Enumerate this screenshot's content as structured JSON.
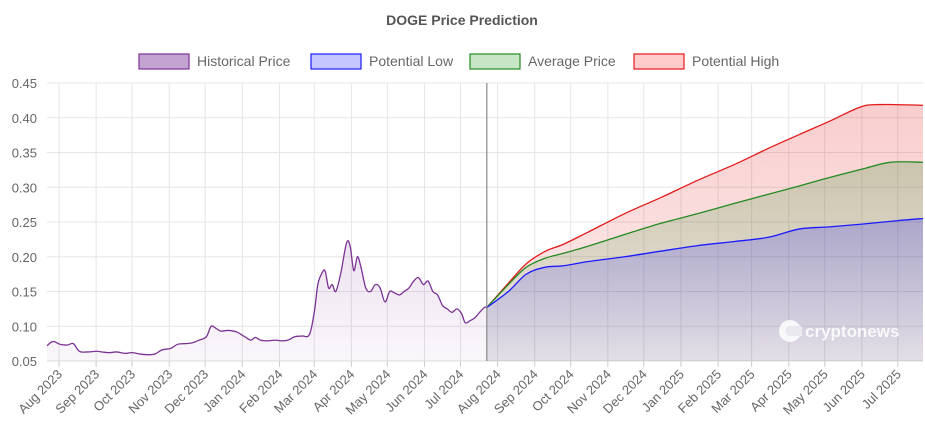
{
  "chart_data": {
    "type": "area",
    "title": "DOGE Price Prediction",
    "ylim": [
      0.05,
      0.45
    ],
    "y_ticks": [
      "0.05",
      "0.10",
      "0.15",
      "0.20",
      "0.25",
      "0.30",
      "0.35",
      "0.40",
      "0.45"
    ],
    "x_ticks": [
      "Aug 2023",
      "Sep 2023",
      "Oct 2023",
      "Nov 2023",
      "Dec 2023",
      "Jan 2024",
      "Feb 2024",
      "Mar 2024",
      "Apr 2024",
      "May 2024",
      "Jun 2024",
      "Jul 2024",
      "Aug 2024",
      "Sep 2024",
      "Oct 2024",
      "Nov 2024",
      "Dec 2024",
      "Jan 2025",
      "Feb 2025",
      "Mar 2025",
      "Apr 2025",
      "May 2025",
      "Jun 2025",
      "Jul 2025"
    ],
    "grid": true,
    "legend_position": "top",
    "divider_date": "2024-07-23",
    "series": [
      {
        "name": "Historical Price",
        "color": "#7b3294",
        "fill": "rgba(123,50,148,0.45)",
        "points": [
          [
            "2023-07-22",
            0.072
          ],
          [
            "2023-07-27",
            0.078
          ],
          [
            "2023-08-02",
            0.074
          ],
          [
            "2023-08-08",
            0.073
          ],
          [
            "2023-08-13",
            0.075
          ],
          [
            "2023-08-18",
            0.064
          ],
          [
            "2023-08-25",
            0.063
          ],
          [
            "2023-09-01",
            0.064
          ],
          [
            "2023-09-06",
            0.063
          ],
          [
            "2023-09-12",
            0.062
          ],
          [
            "2023-09-18",
            0.063
          ],
          [
            "2023-09-25",
            0.061
          ],
          [
            "2023-10-01",
            0.062
          ],
          [
            "2023-10-08",
            0.06
          ],
          [
            "2023-10-14",
            0.059
          ],
          [
            "2023-10-20",
            0.06
          ],
          [
            "2023-10-26",
            0.066
          ],
          [
            "2023-11-02",
            0.068
          ],
          [
            "2023-11-08",
            0.074
          ],
          [
            "2023-11-14",
            0.075
          ],
          [
            "2023-11-20",
            0.076
          ],
          [
            "2023-11-26",
            0.08
          ],
          [
            "2023-12-02",
            0.085
          ],
          [
            "2023-12-06",
            0.1
          ],
          [
            "2023-12-10",
            0.097
          ],
          [
            "2023-12-14",
            0.093
          ],
          [
            "2023-12-20",
            0.094
          ],
          [
            "2023-12-27",
            0.092
          ],
          [
            "2024-01-03",
            0.085
          ],
          [
            "2024-01-08",
            0.08
          ],
          [
            "2024-01-12",
            0.084
          ],
          [
            "2024-01-16",
            0.08
          ],
          [
            "2024-01-22",
            0.079
          ],
          [
            "2024-01-28",
            0.08
          ],
          [
            "2024-02-03",
            0.079
          ],
          [
            "2024-02-08",
            0.08
          ],
          [
            "2024-02-14",
            0.085
          ],
          [
            "2024-02-20",
            0.086
          ],
          [
            "2024-02-26",
            0.088
          ],
          [
            "2024-03-01",
            0.12
          ],
          [
            "2024-03-04",
            0.16
          ],
          [
            "2024-03-07",
            0.175
          ],
          [
            "2024-03-10",
            0.18
          ],
          [
            "2024-03-13",
            0.155
          ],
          [
            "2024-03-16",
            0.16
          ],
          [
            "2024-03-19",
            0.15
          ],
          [
            "2024-03-23",
            0.175
          ],
          [
            "2024-03-28",
            0.22
          ],
          [
            "2024-03-31",
            0.215
          ],
          [
            "2024-04-03",
            0.18
          ],
          [
            "2024-04-06",
            0.2
          ],
          [
            "2024-04-09",
            0.185
          ],
          [
            "2024-04-13",
            0.155
          ],
          [
            "2024-04-17",
            0.15
          ],
          [
            "2024-04-21",
            0.16
          ],
          [
            "2024-04-25",
            0.155
          ],
          [
            "2024-04-29",
            0.135
          ],
          [
            "2024-05-03",
            0.15
          ],
          [
            "2024-05-07",
            0.148
          ],
          [
            "2024-05-11",
            0.145
          ],
          [
            "2024-05-15",
            0.15
          ],
          [
            "2024-05-19",
            0.155
          ],
          [
            "2024-05-23",
            0.165
          ],
          [
            "2024-05-27",
            0.17
          ],
          [
            "2024-05-31",
            0.16
          ],
          [
            "2024-06-04",
            0.165
          ],
          [
            "2024-06-08",
            0.15
          ],
          [
            "2024-06-12",
            0.145
          ],
          [
            "2024-06-16",
            0.13
          ],
          [
            "2024-06-20",
            0.125
          ],
          [
            "2024-06-24",
            0.12
          ],
          [
            "2024-06-28",
            0.125
          ],
          [
            "2024-07-02",
            0.118
          ],
          [
            "2024-07-05",
            0.105
          ],
          [
            "2024-07-09",
            0.108
          ],
          [
            "2024-07-13",
            0.112
          ],
          [
            "2024-07-17",
            0.12
          ],
          [
            "2024-07-21",
            0.127
          ],
          [
            "2024-07-23",
            0.127
          ]
        ]
      },
      {
        "name": "Potential Low",
        "color": "#1a1aff",
        "fill": "rgba(150,150,255,0.55)",
        "points": [
          [
            "2024-07-23",
            0.127
          ],
          [
            "2024-08-10",
            0.15
          ],
          [
            "2024-08-25",
            0.175
          ],
          [
            "2024-09-10",
            0.185
          ],
          [
            "2024-09-25",
            0.187
          ],
          [
            "2024-10-15",
            0.193
          ],
          [
            "2024-11-15",
            0.2
          ],
          [
            "2024-12-15",
            0.208
          ],
          [
            "2025-01-15",
            0.216
          ],
          [
            "2025-02-15",
            0.222
          ],
          [
            "2025-03-15",
            0.228
          ],
          [
            "2025-04-10",
            0.24
          ],
          [
            "2025-05-05",
            0.243
          ],
          [
            "2025-06-01",
            0.247
          ],
          [
            "2025-07-01",
            0.252
          ],
          [
            "2025-07-22",
            0.255
          ]
        ]
      },
      {
        "name": "Average Price",
        "color": "#228b22",
        "fill": "rgba(152,210,152,0.55)",
        "points": [
          [
            "2024-07-23",
            0.127
          ],
          [
            "2024-08-10",
            0.16
          ],
          [
            "2024-08-25",
            0.185
          ],
          [
            "2024-09-10",
            0.198
          ],
          [
            "2024-09-25",
            0.205
          ],
          [
            "2024-10-15",
            0.215
          ],
          [
            "2024-11-15",
            0.232
          ],
          [
            "2024-12-15",
            0.248
          ],
          [
            "2025-01-15",
            0.262
          ],
          [
            "2025-02-15",
            0.277
          ],
          [
            "2025-03-15",
            0.29
          ],
          [
            "2025-04-10",
            0.302
          ],
          [
            "2025-05-05",
            0.314
          ],
          [
            "2025-06-01",
            0.326
          ],
          [
            "2025-06-25",
            0.336
          ],
          [
            "2025-07-22",
            0.336
          ]
        ]
      },
      {
        "name": "Potential High",
        "color": "#e31a1c",
        "fill": "rgba(255,160,160,0.55)",
        "points": [
          [
            "2024-07-23",
            0.127
          ],
          [
            "2024-08-10",
            0.162
          ],
          [
            "2024-08-25",
            0.19
          ],
          [
            "2024-09-10",
            0.208
          ],
          [
            "2024-09-25",
            0.218
          ],
          [
            "2024-10-15",
            0.235
          ],
          [
            "2024-11-15",
            0.262
          ],
          [
            "2024-12-15",
            0.285
          ],
          [
            "2025-01-15",
            0.31
          ],
          [
            "2025-02-15",
            0.333
          ],
          [
            "2025-03-15",
            0.356
          ],
          [
            "2025-04-10",
            0.376
          ],
          [
            "2025-05-05",
            0.395
          ],
          [
            "2025-05-30",
            0.415
          ],
          [
            "2025-06-15",
            0.419
          ],
          [
            "2025-07-22",
            0.418
          ]
        ]
      }
    ],
    "watermark": "cryptonews"
  }
}
